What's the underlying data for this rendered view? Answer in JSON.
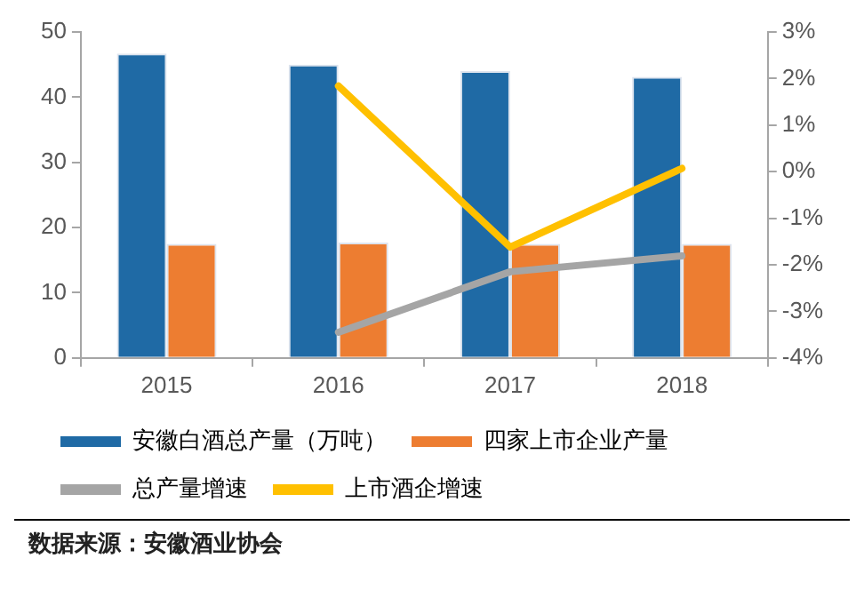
{
  "chart_data": {
    "type": "bar",
    "categories": [
      "2015",
      "2016",
      "2017",
      "2018"
    ],
    "series": [
      {
        "name": "安徽白酒总产量（万吨）",
        "color": "#1f6aa5",
        "values": [
          46.7,
          45.0,
          44.0,
          43.1
        ]
      },
      {
        "name": "四家上市企业产量",
        "color": "#ed7d31",
        "values": [
          17.5,
          17.7,
          17.5,
          17.5
        ]
      },
      {
        "name": "总产量增速",
        "type": "line",
        "axis": "y2",
        "color": "#a5a5a5",
        "values": [
          null,
          -3.45,
          -2.15,
          -1.81
        ]
      },
      {
        "name": "上市酒企增速",
        "type": "line",
        "axis": "y2",
        "color": "#ffc000",
        "values": [
          null,
          1.84,
          -1.62,
          0.07
        ]
      }
    ],
    "ylim": [
      0,
      50
    ],
    "yticks": [
      0,
      10,
      20,
      30,
      40,
      50
    ],
    "y2lim": [
      -4,
      3
    ],
    "y2ticks": [
      {
        "value": -4,
        "label": "-4%"
      },
      {
        "value": -3,
        "label": "-3%"
      },
      {
        "value": -2,
        "label": "-2%"
      },
      {
        "value": -1,
        "label": "-1%"
      },
      {
        "value": 0,
        "label": "0%"
      },
      {
        "value": 1,
        "label": "1%"
      },
      {
        "value": 2,
        "label": "2%"
      },
      {
        "value": 3,
        "label": "3%"
      }
    ],
    "grid": false,
    "legend": "bottom",
    "marker": "none",
    "annotations": [
      "数据来源：安徽酒业协会"
    ]
  }
}
